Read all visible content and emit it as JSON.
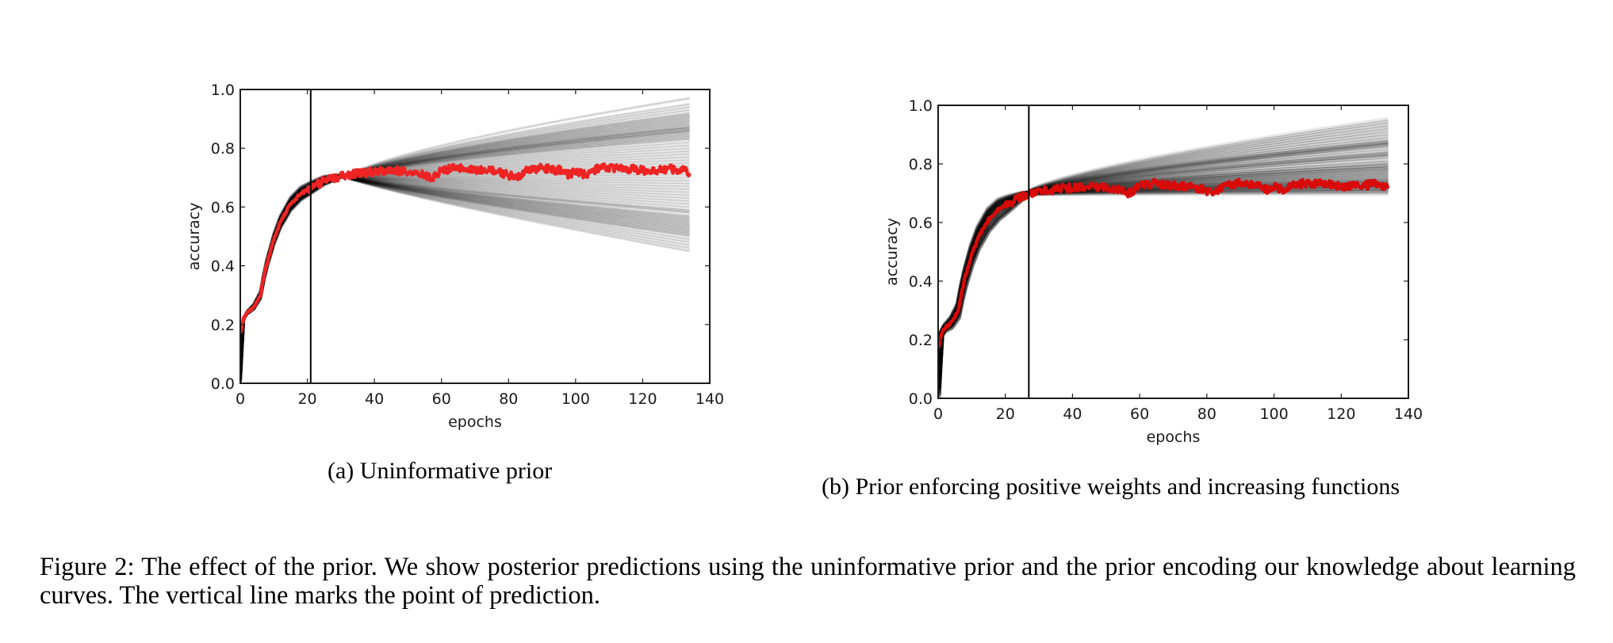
{
  "chart_data": [
    {
      "type": "line",
      "id": "a",
      "xlabel": "epochs",
      "ylabel": "accuracy",
      "xlim": [
        0,
        140
      ],
      "ylim": [
        0.0,
        1.0
      ],
      "x_ticks": [
        0,
        20,
        40,
        60,
        80,
        100,
        120,
        140
      ],
      "x_tick_labels": [
        "0",
        "20",
        "40",
        "60",
        "80",
        "100",
        "120",
        "140"
      ],
      "y_ticks": [
        0.0,
        0.2,
        0.4,
        0.6,
        0.8,
        1.0
      ],
      "y_tick_labels": [
        "0.0",
        "0.2",
        "0.4",
        "0.6",
        "0.8",
        "1.0"
      ],
      "grid": false,
      "prediction_point_epoch": 21,
      "colors": {
        "observed": "#ee2424",
        "posterior": "#000000",
        "axes": "#1a1a1a"
      },
      "series": [
        {
          "name": "observed learning curve",
          "x": [
            0,
            1,
            2,
            4,
            6,
            7,
            8,
            10,
            12,
            15,
            18,
            21,
            25,
            30,
            35,
            40,
            45,
            50,
            53,
            55,
            57,
            60,
            65,
            70,
            75,
            80,
            82,
            85,
            90,
            95,
            98,
            100,
            103,
            105,
            110,
            115,
            120,
            125,
            130,
            134
          ],
          "y": [
            0.17,
            0.22,
            0.24,
            0.26,
            0.3,
            0.36,
            0.41,
            0.49,
            0.55,
            0.61,
            0.645,
            0.665,
            0.69,
            0.705,
            0.715,
            0.72,
            0.725,
            0.72,
            0.715,
            0.705,
            0.7,
            0.725,
            0.735,
            0.725,
            0.725,
            0.71,
            0.7,
            0.72,
            0.735,
            0.725,
            0.71,
            0.72,
            0.71,
            0.725,
            0.735,
            0.73,
            0.725,
            0.725,
            0.73,
            0.72
          ]
        },
        {
          "name": "posterior predictive samples",
          "x_end": 134,
          "converge_epoch": 32,
          "converge_value": 0.7,
          "end_values": [
            0.97,
            0.95,
            0.94,
            0.93,
            0.92,
            0.915,
            0.91,
            0.905,
            0.9,
            0.895,
            0.89,
            0.885,
            0.88,
            0.875,
            0.87,
            0.87,
            0.865,
            0.86,
            0.86,
            0.855,
            0.85,
            0.845,
            0.84,
            0.835,
            0.83,
            0.82,
            0.81,
            0.8,
            0.79,
            0.78,
            0.77,
            0.76,
            0.75,
            0.74,
            0.73,
            0.72,
            0.71,
            0.7,
            0.69,
            0.68,
            0.67,
            0.66,
            0.65,
            0.64,
            0.63,
            0.62,
            0.61,
            0.6,
            0.59,
            0.585,
            0.58,
            0.57,
            0.565,
            0.56,
            0.555,
            0.55,
            0.545,
            0.54,
            0.535,
            0.53,
            0.525,
            0.52,
            0.515,
            0.51,
            0.505,
            0.5,
            0.49,
            0.48,
            0.47,
            0.46,
            0.45
          ]
        }
      ]
    },
    {
      "type": "line",
      "id": "b",
      "xlabel": "epochs",
      "ylabel": "accuracy",
      "xlim": [
        0,
        140
      ],
      "ylim": [
        0.0,
        1.0
      ],
      "x_ticks": [
        0,
        20,
        40,
        60,
        80,
        100,
        120,
        140
      ],
      "x_tick_labels": [
        "0",
        "20",
        "40",
        "60",
        "80",
        "100",
        "120",
        "140"
      ],
      "y_ticks": [
        0.0,
        0.2,
        0.4,
        0.6,
        0.8,
        1.0
      ],
      "y_tick_labels": [
        "0.0",
        "0.2",
        "0.4",
        "0.6",
        "0.8",
        "1.0"
      ],
      "grid": false,
      "prediction_point_epoch": 27,
      "colors": {
        "observed": "#d80a0a",
        "posterior": "#000000",
        "axes": "#1a1a1a"
      },
      "series": [
        {
          "name": "observed learning curve",
          "x": [
            0,
            1,
            2,
            4,
            6,
            7,
            8,
            10,
            12,
            15,
            18,
            21,
            25,
            27,
            30,
            35,
            40,
            45,
            50,
            53,
            55,
            57,
            60,
            65,
            70,
            75,
            80,
            82,
            85,
            90,
            95,
            98,
            100,
            103,
            105,
            110,
            115,
            120,
            125,
            130,
            134
          ],
          "y": [
            0.17,
            0.22,
            0.24,
            0.26,
            0.3,
            0.36,
            0.41,
            0.49,
            0.55,
            0.61,
            0.645,
            0.665,
            0.69,
            0.7,
            0.705,
            0.715,
            0.72,
            0.725,
            0.72,
            0.715,
            0.705,
            0.7,
            0.725,
            0.735,
            0.725,
            0.725,
            0.71,
            0.7,
            0.72,
            0.735,
            0.725,
            0.71,
            0.72,
            0.71,
            0.725,
            0.735,
            0.73,
            0.725,
            0.725,
            0.73,
            0.72
          ]
        },
        {
          "name": "posterior predictive samples",
          "x_end": 134,
          "converge_epoch": 27,
          "converge_value": 0.7,
          "end_values": [
            0.95,
            0.94,
            0.93,
            0.92,
            0.91,
            0.9,
            0.89,
            0.88,
            0.875,
            0.87,
            0.87,
            0.865,
            0.86,
            0.85,
            0.84,
            0.835,
            0.83,
            0.83,
            0.82,
            0.81,
            0.8,
            0.8,
            0.79,
            0.79,
            0.785,
            0.78,
            0.775,
            0.77,
            0.765,
            0.76,
            0.755,
            0.75,
            0.745,
            0.74,
            0.74,
            0.735,
            0.73,
            0.73,
            0.725,
            0.72,
            0.72,
            0.715,
            0.71,
            0.71,
            0.705,
            0.7
          ]
        }
      ]
    }
  ],
  "subcaptions": {
    "a": "(a) Uninformative prior",
    "b": "(b) Prior enforcing positive weights and increasing functions"
  },
  "figure_caption": "Figure 2: The effect of the prior.  We show posterior predictions using the uninformative prior and the prior encoding our knowledge about learning curves. The vertical line marks the point of prediction."
}
